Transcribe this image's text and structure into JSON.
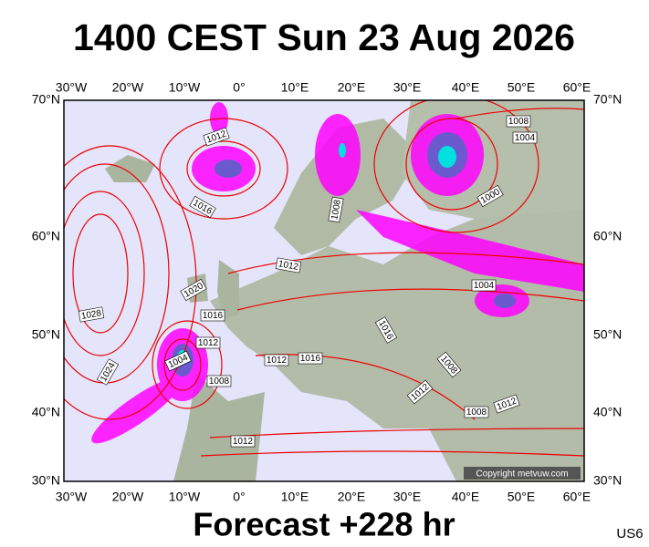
{
  "title": "1400 CEST Sun 23 Aug 2026",
  "footer": "Forecast +228 hr",
  "corner_code": "US6",
  "copyright": "Copyright metvuw.com",
  "lon_labels": [
    "30°W",
    "20°W",
    "10°W",
    "0°",
    "10°E",
    "20°E",
    "30°E",
    "40°E",
    "50°E",
    "60°E"
  ],
  "lat_labels": [
    "70°N",
    "60°N",
    "50°N",
    "40°N",
    "30°N"
  ],
  "isobar_labels": [
    "1012",
    "1016",
    "1028",
    "1024",
    "1020",
    "1016",
    "1012",
    "1004",
    "1008",
    "1012",
    "1012",
    "1016",
    "1008",
    "1016",
    "1008",
    "1012",
    "1012",
    "1008",
    "1012",
    "1008",
    "1004",
    "1000",
    "1004"
  ]
}
